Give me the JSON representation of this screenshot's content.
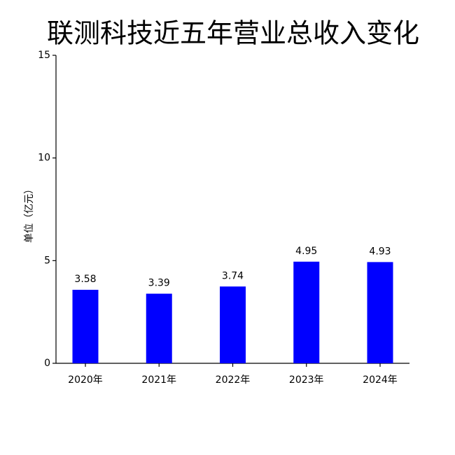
{
  "chart_data": {
    "type": "bar",
    "title": "联测科技近五年营业总收入变化",
    "y_label": "单位（亿元）",
    "categories": [
      "2020年",
      "2021年",
      "2022年",
      "2023年",
      "2024年"
    ],
    "values": [
      3.58,
      3.39,
      3.74,
      4.95,
      4.93
    ],
    "color": "#0000ff",
    "ylim": [
      0,
      15
    ],
    "yticks": [
      0,
      5,
      10,
      15
    ],
    "grid": false,
    "data_labels": true
  }
}
